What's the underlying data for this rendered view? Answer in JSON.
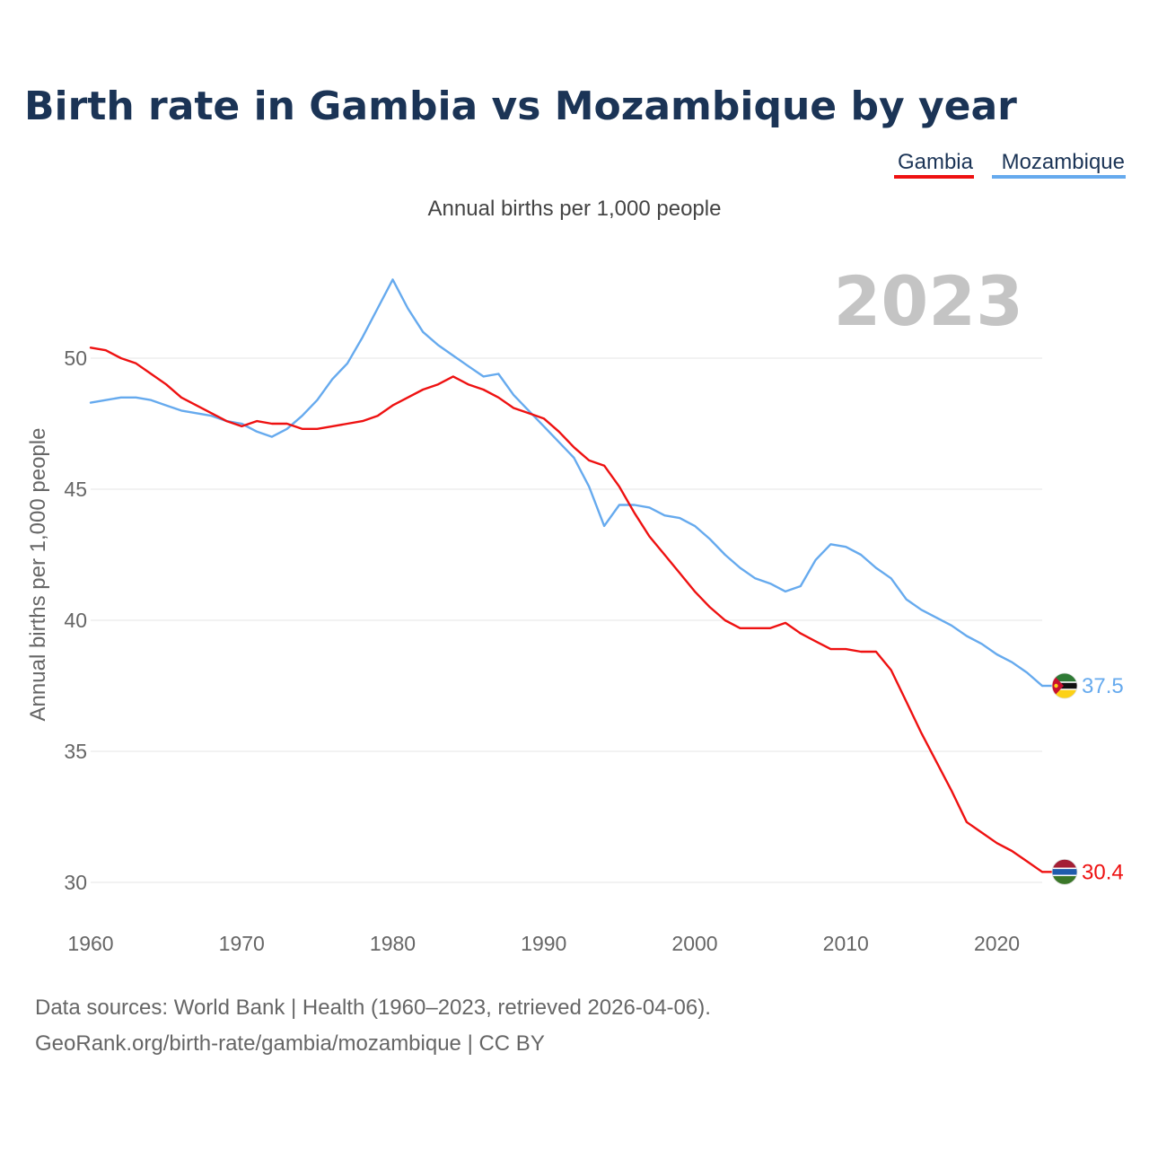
{
  "colors": {
    "gambia": "#ee1111",
    "mozambique": "#66aaee",
    "title": "#1b3456"
  },
  "chart_data": {
    "type": "line",
    "title": "Birth rate in Gambia vs Mozambique by year",
    "subtitle": "Annual births per 1,000 people",
    "ylabel": "Annual births per 1,000 people",
    "year_watermark": "2023",
    "xlim": [
      1960,
      2023
    ],
    "ylim": [
      29,
      54
    ],
    "x_ticks": [
      1960,
      1970,
      1980,
      1990,
      2000,
      2010,
      2020
    ],
    "y_ticks": [
      30,
      35,
      40,
      45,
      50
    ],
    "x": [
      1960,
      1961,
      1962,
      1963,
      1964,
      1965,
      1966,
      1967,
      1968,
      1969,
      1970,
      1971,
      1972,
      1973,
      1974,
      1975,
      1976,
      1977,
      1978,
      1979,
      1980,
      1981,
      1982,
      1983,
      1984,
      1985,
      1986,
      1987,
      1988,
      1989,
      1990,
      1991,
      1992,
      1993,
      1994,
      1995,
      1996,
      1997,
      1998,
      1999,
      2000,
      2001,
      2002,
      2003,
      2004,
      2005,
      2006,
      2007,
      2008,
      2009,
      2010,
      2011,
      2012,
      2013,
      2014,
      2015,
      2016,
      2017,
      2018,
      2019,
      2020,
      2021,
      2022,
      2023
    ],
    "series": [
      {
        "name": "Gambia",
        "end_label": "30.4",
        "values": [
          50.4,
          50.3,
          50.0,
          49.8,
          49.4,
          49.0,
          48.5,
          48.2,
          47.9,
          47.6,
          47.4,
          47.6,
          47.5,
          47.5,
          47.3,
          47.3,
          47.4,
          47.5,
          47.6,
          47.8,
          48.2,
          48.5,
          48.8,
          49.0,
          49.3,
          49.0,
          48.8,
          48.5,
          48.1,
          47.9,
          47.7,
          47.2,
          46.6,
          46.1,
          45.9,
          45.1,
          44.1,
          43.2,
          42.5,
          41.8,
          41.1,
          40.5,
          40.0,
          39.7,
          39.7,
          39.7,
          39.9,
          39.5,
          39.2,
          38.9,
          38.9,
          38.8,
          38.8,
          38.1,
          36.9,
          35.7,
          34.6,
          33.5,
          32.3,
          31.9,
          31.5,
          31.2,
          30.8,
          30.4
        ]
      },
      {
        "name": "Mozambique",
        "end_label": "37.5",
        "values": [
          48.3,
          48.4,
          48.5,
          48.5,
          48.4,
          48.2,
          48.0,
          47.9,
          47.8,
          47.6,
          47.5,
          47.2,
          47.0,
          47.3,
          47.8,
          48.4,
          49.2,
          49.8,
          50.8,
          51.9,
          53.0,
          51.9,
          51.0,
          50.5,
          50.1,
          49.7,
          49.3,
          49.4,
          48.6,
          48.0,
          47.4,
          46.8,
          46.2,
          45.1,
          43.6,
          44.4,
          44.4,
          44.3,
          44.0,
          43.9,
          43.6,
          43.1,
          42.5,
          42.0,
          41.6,
          41.4,
          41.1,
          41.3,
          42.3,
          42.9,
          42.8,
          42.5,
          42.0,
          41.6,
          40.8,
          40.4,
          40.1,
          39.8,
          39.4,
          39.1,
          38.7,
          38.4,
          38.0,
          37.5
        ]
      }
    ]
  },
  "legend": [
    {
      "label": "Gambia"
    },
    {
      "label": "Mozambique"
    }
  ],
  "flags": {
    "gambia": "gambia-flag-icon",
    "mozambique": "mozambique-flag-icon"
  },
  "source": {
    "line1": "Data sources: World Bank | Health (1960–2023, retrieved 2026-04-06).",
    "line2": "GeoRank.org/birth-rate/gambia/mozambique | CC BY"
  }
}
